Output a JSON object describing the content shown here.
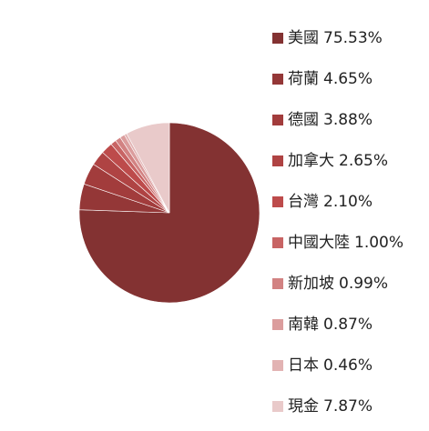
{
  "chart_data": {
    "type": "pie",
    "categories": [
      "美國",
      "荷蘭",
      "德國",
      "加拿大",
      "台灣",
      "中國大陸",
      "新加坡",
      "南韓",
      "日本",
      "現金"
    ],
    "values": [
      75.53,
      4.65,
      3.88,
      2.65,
      2.1,
      1.0,
      0.99,
      0.87,
      0.46,
      7.87
    ],
    "value_labels": [
      "75.53%",
      "4.65%",
      "3.88%",
      "2.65%",
      "2.10%",
      "1.00%",
      "0.99%",
      "0.87%",
      "0.46%",
      "7.87%"
    ],
    "colors": [
      "#833232",
      "#943737",
      "#a23c3c",
      "#af4343",
      "#bd4b4b",
      "#c86464",
      "#d28282",
      "#db9d9d",
      "#e2b3b3",
      "#e9caca"
    ],
    "legend": "right"
  }
}
